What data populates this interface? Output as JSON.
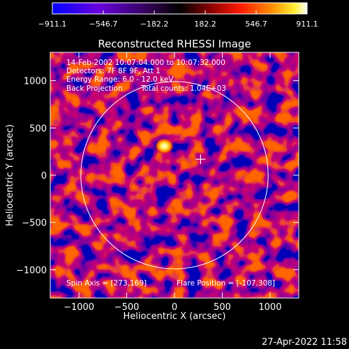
{
  "chart_data": {
    "type": "heatmap",
    "title": "Reconstructed RHESSI Image",
    "xlabel": "Heliocentric X (arcsec)",
    "ylabel": "Heliocentric Y (arcsec)",
    "xlim": [
      -1300,
      1300
    ],
    "ylim": [
      -1300,
      1300
    ],
    "x_ticks": [
      "−1000",
      "−500",
      "0",
      "500",
      "1000"
    ],
    "x_tick_values": [
      -1000,
      -500,
      0,
      500,
      1000
    ],
    "y_ticks": [
      "1000",
      "500",
      "0",
      "−500",
      "−1000"
    ],
    "y_tick_values": [
      1000,
      500,
      0,
      -500,
      -1000
    ],
    "colorbar": {
      "min": -911.1,
      "max": 911.1,
      "ticks": [
        "−911.1",
        "−546.7",
        "−182.2",
        "182.2",
        "546.7",
        "911.1"
      ],
      "tick_values": [
        -911.1,
        -546.7,
        -182.2,
        182.2,
        546.7,
        911.1
      ]
    },
    "annotations": [
      "14-Feb-2002 10:07:04.000 to 10:07:32.000",
      "Detectors: 7F 8F 9F, Att 1",
      "Energy Range: 6.0 - 12.0 keV",
      "Back Projection",
      "Total counts: 1.04E+03"
    ],
    "spin_axis": "Spin Axis = [273,169]",
    "flare_position": "Flare Position = [-107,308]",
    "solar_limb_radius_arcsec": 980,
    "peak_source": {
      "x": -107,
      "y": 308
    },
    "spin_axis_marker": {
      "x": 273,
      "y": 169
    }
  },
  "timestamp": "27-Apr-2022 11:58",
  "colors": {
    "background": "#000000",
    "text": "#ffffff",
    "colormap": [
      "#0000ff",
      "#5a00d8",
      "#2a0055",
      "#000000",
      "#700000",
      "#ff0000",
      "#ff8800",
      "#ffff00",
      "#ffffff"
    ]
  }
}
